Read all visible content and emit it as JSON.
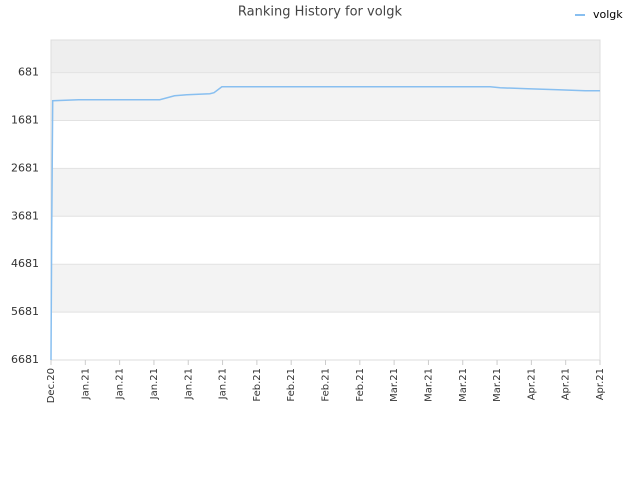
{
  "chart_data": {
    "type": "line",
    "title": "Ranking History for volgk",
    "x": [
      0,
      0.02,
      0.05,
      0.8,
      3.17,
      3.6,
      3.96,
      4.63,
      4.75,
      4.98,
      12.8,
      13.09,
      13.9,
      14.78,
      15.57,
      16
    ],
    "series": [
      {
        "name": "volgk",
        "color": "#88bff0",
        "values": [
          6681,
          4030,
          1268,
          1247,
          1247,
          1164,
          1143,
          1122,
          1101,
          976,
          976,
          997,
          1018,
          1039,
          1060,
          1060
        ]
      }
    ],
    "xlim": [
      0,
      16
    ],
    "xticks": [
      {
        "value": 0,
        "label": "Dec.20"
      },
      {
        "value": 1,
        "label": "Jan.21"
      },
      {
        "value": 2,
        "label": "Jan.21"
      },
      {
        "value": 3,
        "label": "Jan.21"
      },
      {
        "value": 4,
        "label": "Jan.21"
      },
      {
        "value": 5,
        "label": "Jan.21"
      },
      {
        "value": 6,
        "label": "Feb.21"
      },
      {
        "value": 7,
        "label": "Feb.21"
      },
      {
        "value": 8,
        "label": "Feb.21"
      },
      {
        "value": 9,
        "label": "Feb.21"
      },
      {
        "value": 10,
        "label": "Mar.21"
      },
      {
        "value": 11,
        "label": "Mar.21"
      },
      {
        "value": 12,
        "label": "Mar.21"
      },
      {
        "value": 13,
        "label": "Mar.21"
      },
      {
        "value": 14,
        "label": "Apr.21"
      },
      {
        "value": 15,
        "label": "Apr.21"
      },
      {
        "value": 16,
        "label": "Apr.21"
      }
    ],
    "ylim": [
      6681,
      0
    ],
    "yticks": [
      681,
      1681,
      2681,
      3681,
      4681,
      5681,
      6681
    ],
    "grid": true,
    "legend": "top-right"
  }
}
